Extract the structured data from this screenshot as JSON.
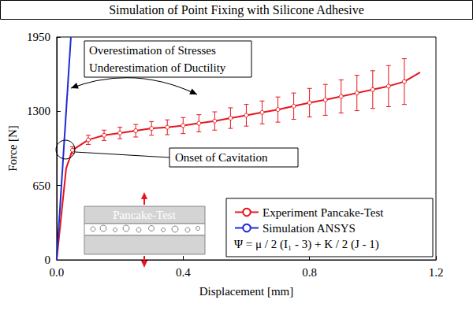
{
  "chart_data": {
    "type": "line",
    "title": "Simulation of Point Fixing with Silicone Adhesive",
    "x_label": "Displacement [mm]",
    "y_label": "Force [N]",
    "xlim": [
      0,
      1.2
    ],
    "ylim": [
      0,
      1950
    ],
    "xticks": [
      {
        "value": 0,
        "label": "0.0"
      },
      0.4,
      0.8,
      1.2
    ],
    "yticks": [
      0,
      650,
      1300,
      1950
    ],
    "grid": false,
    "legend": "lower right",
    "series": [
      {
        "name": "Experiment Pancake-Test",
        "color": "#e8141c",
        "marker": "circle",
        "line_style": "solid",
        "x": [
          0,
          0.03,
          0.05,
          0.1,
          0.15,
          0.2,
          0.25,
          0.3,
          0.35,
          0.4,
          0.45,
          0.5,
          0.55,
          0.6,
          0.65,
          0.7,
          0.75,
          0.8,
          0.85,
          0.9,
          0.95,
          1.0,
          1.05,
          1.1,
          1.15
        ],
        "values": [
          0,
          800,
          960,
          1050,
          1090,
          1110,
          1130,
          1150,
          1160,
          1175,
          1195,
          1215,
          1240,
          1265,
          1290,
          1315,
          1345,
          1375,
          1400,
          1430,
          1460,
          1490,
          1520,
          1560,
          1640
        ],
        "errors": [
          null,
          null,
          30,
          40,
          45,
          50,
          55,
          60,
          65,
          70,
          75,
          80,
          90,
          95,
          100,
          110,
          115,
          125,
          135,
          145,
          155,
          165,
          180,
          200,
          null
        ]
      },
      {
        "name": "Simulation ANSYS",
        "color": "#1f2bd6",
        "marker": "none",
        "line_style": "solid",
        "x": [
          0,
          0.045
        ],
        "values": [
          0,
          1950
        ]
      }
    ],
    "annotations": [
      "Overestimation of Stresses",
      "Underestimation of Ductility",
      "Onset of Cavitation",
      "Pancake-Test",
      "Ψ = μ / 2 (I₁ - 3) + K / 2 (J - 1)"
    ]
  }
}
